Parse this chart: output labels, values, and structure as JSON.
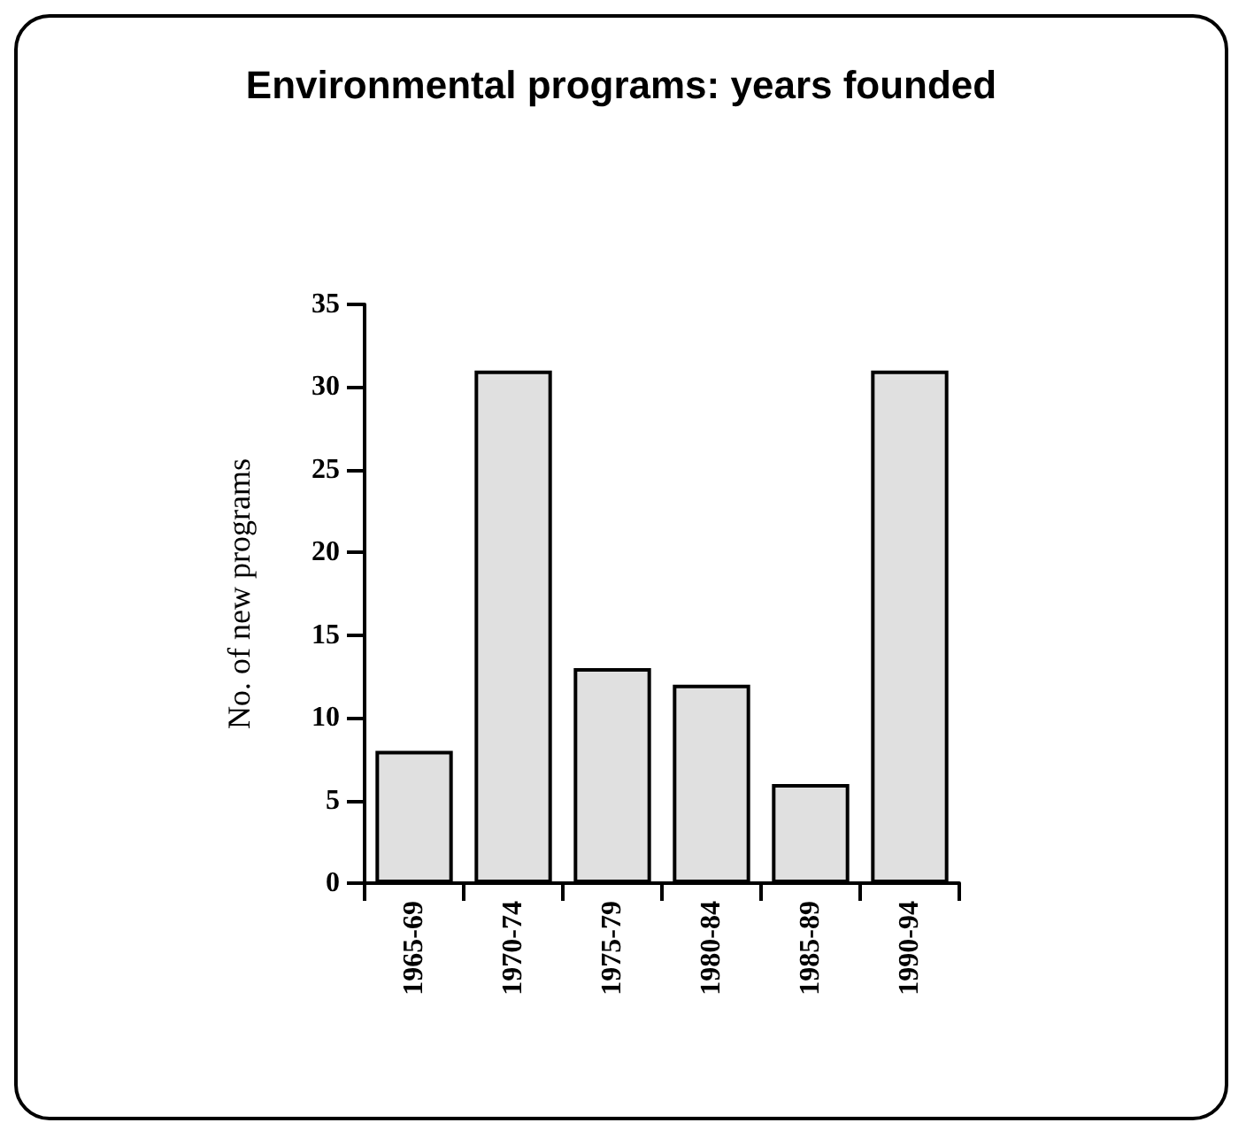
{
  "chart_data": {
    "type": "bar",
    "title": "Environmental programs: years founded",
    "ylabel": "No. of new programs",
    "categories": [
      "1965-69",
      "1970-74",
      "1975-79",
      "1980-84",
      "1985-89",
      "1990-94"
    ],
    "values": [
      8,
      31,
      13,
      12,
      6,
      31
    ],
    "color": "#e0e0e0",
    "ylim": [
      0,
      35
    ],
    "yticks": [
      0,
      5,
      10,
      15,
      20,
      25,
      30,
      35
    ],
    "grid": false
  }
}
